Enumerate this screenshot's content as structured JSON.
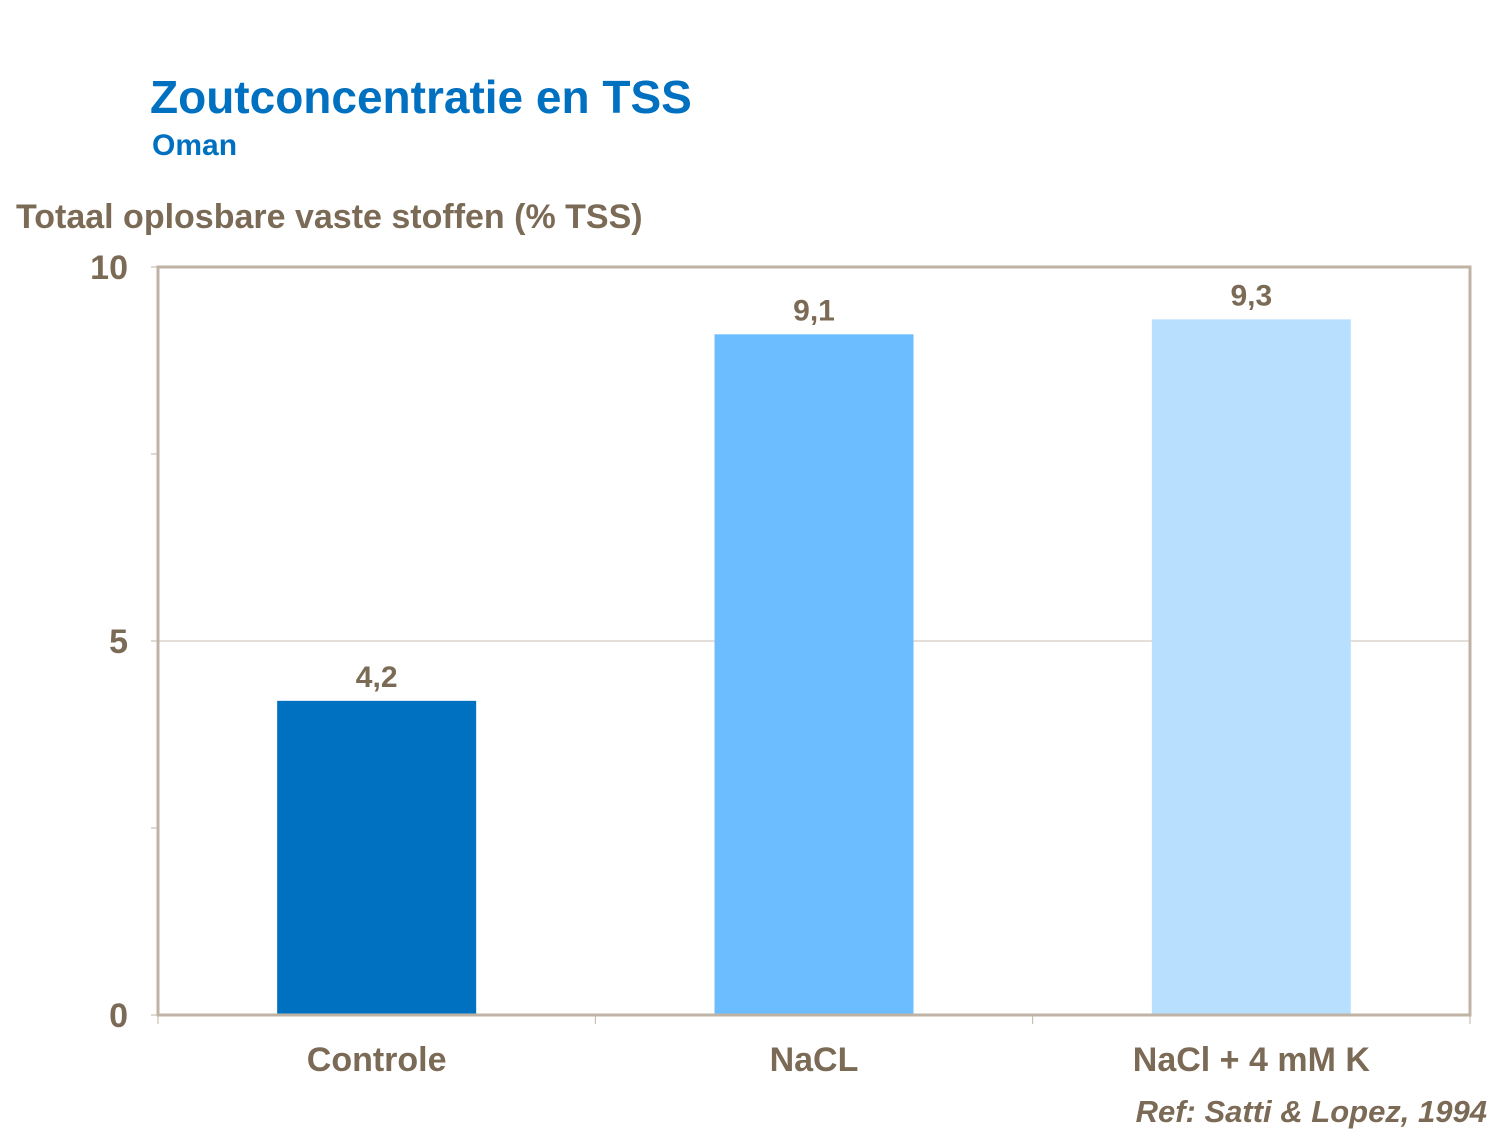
{
  "title": "Zoutconcentratie en TSS",
  "subtitle": "Oman",
  "reference": "Ref: Satti & Lopez, 1994",
  "chart_data": {
    "type": "bar",
    "title": "Zoutconcentratie en TSS",
    "subtitle": "Oman",
    "ylabel": "Totaal oplosbare vaste stoffen (% TSS)",
    "xlabel": "",
    "categories": [
      "Controle",
      "NaCL",
      "NaCl + 4 mM K"
    ],
    "values": [
      4.2,
      9.1,
      9.3
    ],
    "data_labels": [
      "4,2",
      "9,1",
      "9,3"
    ],
    "colors": [
      "#0070C0",
      "#6BBDFF",
      "#B9DFFF"
    ],
    "ylim": [
      0,
      10
    ],
    "yticks": [
      0,
      5,
      10
    ],
    "ytick_labels": [
      "0",
      "5",
      "10"
    ],
    "grid": true,
    "legend": "none"
  }
}
